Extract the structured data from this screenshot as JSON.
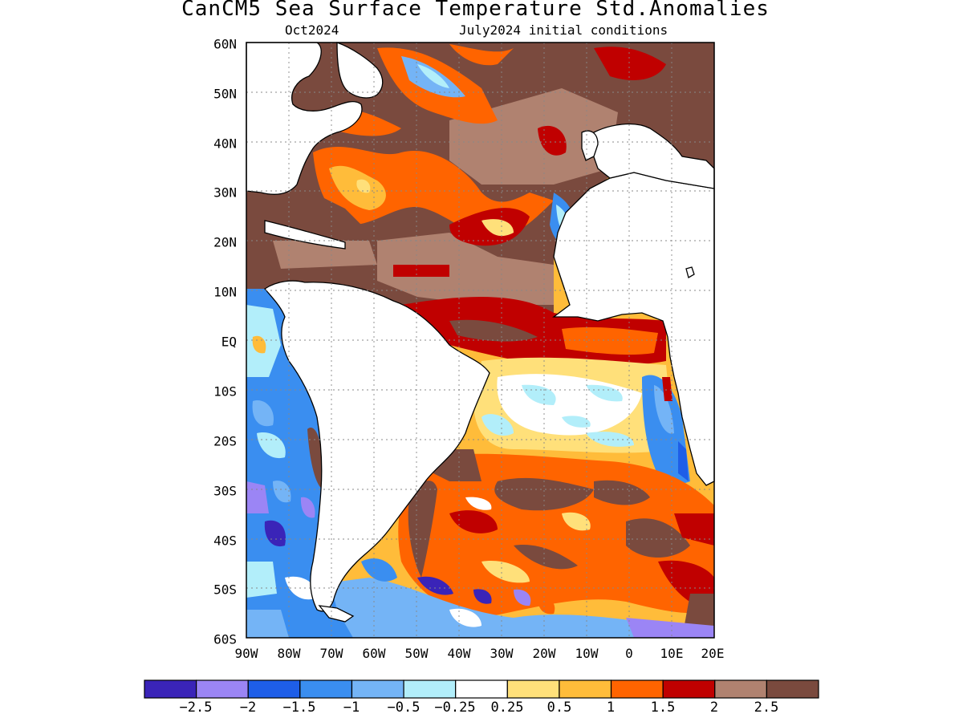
{
  "title": "CanCM5 Sea Surface Temperature Std.Anomalies",
  "subtitle_left": "Oct2024",
  "subtitle_right": "July2024 initial conditions",
  "lat_labels": [
    "60N",
    "50N",
    "40N",
    "30N",
    "20N",
    "10N",
    "EQ",
    "10S",
    "20S",
    "30S",
    "40S",
    "50S",
    "60S"
  ],
  "lon_labels": [
    "90W",
    "80W",
    "70W",
    "60W",
    "50W",
    "40W",
    "30W",
    "20W",
    "10W",
    "0",
    "10E",
    "20E"
  ],
  "colorbar": {
    "colors": [
      "#3a24b8",
      "#9b85f5",
      "#1e5ee8",
      "#3a8ef0",
      "#74b4f6",
      "#b2eefa",
      "#ffffff",
      "#ffe07a",
      "#ffbc3a",
      "#ff6400",
      "#c00000",
      "#b08270",
      "#7a4a3e"
    ],
    "labels": [
      "−2.5",
      "−2",
      "−1.5",
      "−1",
      "−0.5",
      "−0.25",
      "0.25",
      "0.5",
      "1",
      "1.5",
      "2",
      "2.5"
    ]
  }
}
